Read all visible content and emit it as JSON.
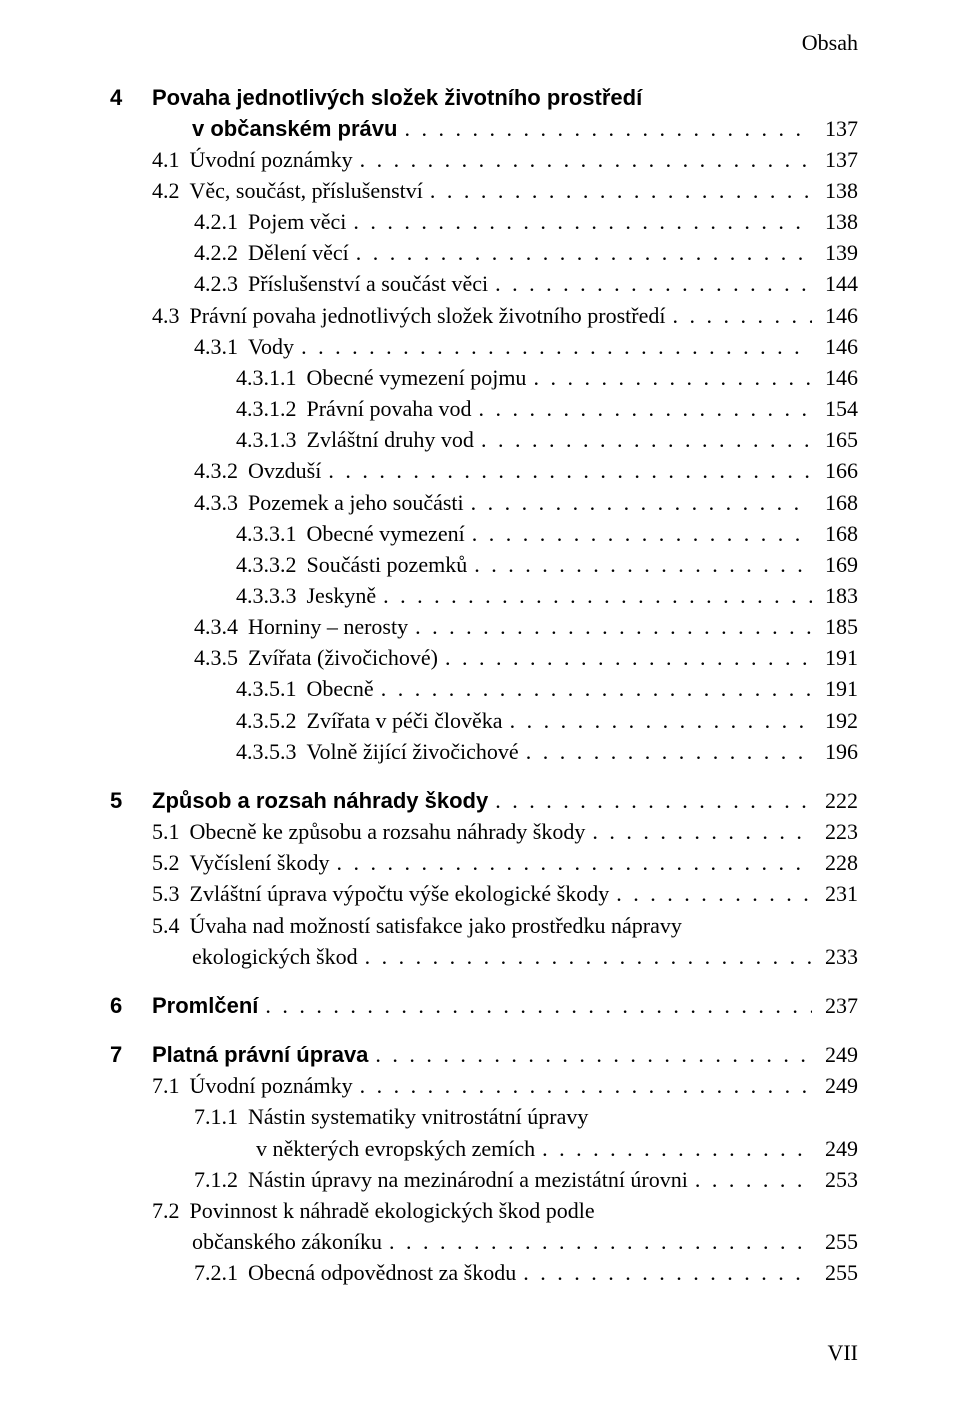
{
  "running_head": "Obsah",
  "footer": "VII",
  "leader_dots": ". . . . . . . . . . . . . . . . . . . . . . . . . . . . . . . . . . . . . . . . . . . . . . . . . . . . . . . . . . . . . . . . . . . . . . . . . . . . . . . . . . . . . . . . . . . . . . . . . . . . . . . . . . . . . . . . . . . . . . . .",
  "groups": [
    {
      "rows": [
        {
          "level": 0,
          "chapter": true,
          "num": "4",
          "label": "Povaha jednotlivých složek životního prostředí",
          "page": "",
          "no_leader": true
        },
        {
          "level": 1,
          "chapter_cont": true,
          "num": "",
          "label": "v občanském právu",
          "page": "137"
        },
        {
          "level": 1,
          "num": "4.1",
          "label": "Úvodní poznámky",
          "page": "137"
        },
        {
          "level": 1,
          "num": "4.2",
          "label": "Věc, součást, příslušenství",
          "page": "138"
        },
        {
          "level": 2,
          "num": "4.2.1",
          "label": "Pojem věci",
          "page": "138"
        },
        {
          "level": 2,
          "num": "4.2.2",
          "label": "Dělení věcí",
          "page": "139"
        },
        {
          "level": 2,
          "num": "4.2.3",
          "label": "Příslušenství a součást věci",
          "page": "144"
        },
        {
          "level": 1,
          "num": "4.3",
          "label": "Právní povaha jednotlivých složek životního prostředí",
          "page": "146"
        },
        {
          "level": 2,
          "num": "4.3.1",
          "label": "Vody",
          "page": "146"
        },
        {
          "level": 3,
          "num": "4.3.1.1",
          "label": "Obecné vymezení pojmu",
          "page": "146"
        },
        {
          "level": 3,
          "num": "4.3.1.2",
          "label": "Právní povaha vod",
          "page": "154"
        },
        {
          "level": 3,
          "num": "4.3.1.3",
          "label": "Zvláštní druhy vod",
          "page": "165"
        },
        {
          "level": 2,
          "num": "4.3.2",
          "label": "Ovzduší",
          "page": "166"
        },
        {
          "level": 2,
          "num": "4.3.3",
          "label": "Pozemek a jeho součásti",
          "page": "168"
        },
        {
          "level": 3,
          "num": "4.3.3.1",
          "label": "Obecné vymezení",
          "page": "168"
        },
        {
          "level": 3,
          "num": "4.3.3.2",
          "label": "Součásti pozemků",
          "page": "169"
        },
        {
          "level": 3,
          "num": "4.3.3.3",
          "label": "Jeskyně",
          "page": "183"
        },
        {
          "level": 2,
          "num": "4.3.4",
          "label": "Horniny – nerosty",
          "page": "185"
        },
        {
          "level": 2,
          "num": "4.3.5",
          "label": "Zvířata (živočichové)",
          "page": "191"
        },
        {
          "level": 3,
          "num": "4.3.5.1",
          "label": "Obecně",
          "page": "191"
        },
        {
          "level": 3,
          "num": "4.3.5.2",
          "label": "Zvířata v péči člověka",
          "page": "192"
        },
        {
          "level": 3,
          "num": "4.3.5.3",
          "label": "Volně žijící živočichové",
          "page": "196"
        }
      ]
    },
    {
      "rows": [
        {
          "level": 0,
          "chapter": true,
          "num": "5",
          "label": "Způsob a rozsah náhrady škody",
          "page": "222"
        },
        {
          "level": 1,
          "num": "5.1",
          "label": "Obecně ke způsobu a rozsahu náhrady škody",
          "page": "223"
        },
        {
          "level": 1,
          "num": "5.2",
          "label": "Vyčíslení škody",
          "page": "228"
        },
        {
          "level": 1,
          "num": "5.3",
          "label": "Zvláštní úprava výpočtu výše ekologické škody",
          "page": "231"
        },
        {
          "level": 1,
          "num": "5.4",
          "label": "Úvaha nad možností satisfakce jako prostředku nápravy",
          "page": "",
          "no_leader": true
        },
        {
          "level": 1,
          "cont_of_prev": true,
          "num": "",
          "label": "ekologických škod",
          "page": "233"
        }
      ]
    },
    {
      "rows": [
        {
          "level": 0,
          "chapter": true,
          "num": "6",
          "label": "Promlčení",
          "page": "237"
        }
      ]
    },
    {
      "rows": [
        {
          "level": 0,
          "chapter": true,
          "num": "7",
          "label": "Platná právní úprava",
          "page": "249"
        },
        {
          "level": 1,
          "num": "7.1",
          "label": "Úvodní poznámky",
          "page": "249"
        },
        {
          "level": 2,
          "num": "7.1.1",
          "label": "Nástin systematiky vnitrostátní úpravy",
          "page": "",
          "no_leader": true
        },
        {
          "level": 2,
          "cont_of_prev": true,
          "num": "",
          "label": "v některých evropských zemích",
          "page": "249",
          "extra_indent": true
        },
        {
          "level": 2,
          "num": "7.1.2",
          "label": "Nástin úpravy na mezinárodní a mezistátní úrovni",
          "page": "253"
        },
        {
          "level": 1,
          "num": "7.2",
          "label": "Povinnost k náhradě ekologických škod podle",
          "page": "",
          "no_leader": true
        },
        {
          "level": 1,
          "cont_of_prev": true,
          "num": "",
          "label": "občanského zákoníku",
          "page": "255"
        },
        {
          "level": 2,
          "num": "7.2.1",
          "label": "Obecná odpovědnost za škodu",
          "page": "255"
        }
      ]
    }
  ]
}
